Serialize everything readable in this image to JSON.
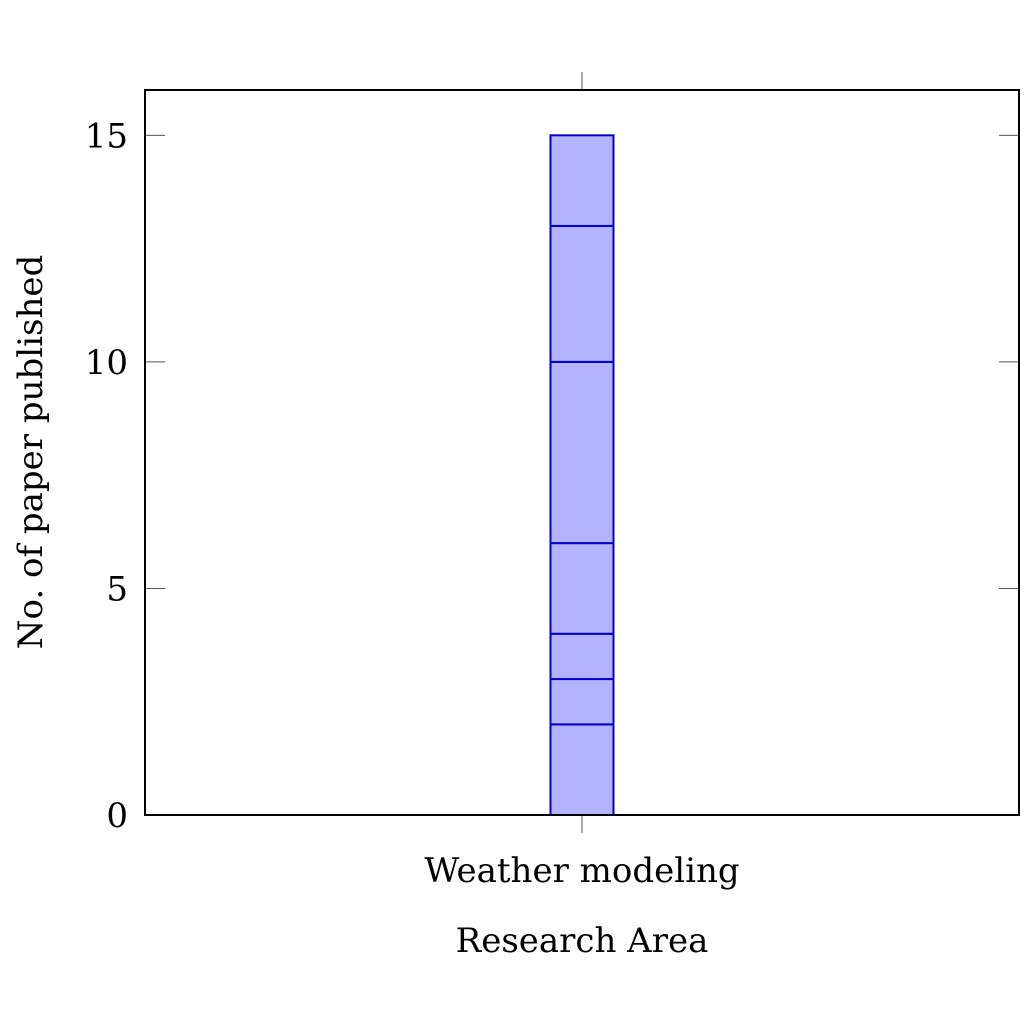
{
  "chart_data": {
    "type": "bar",
    "stacked": true,
    "categories": [
      "Weather modeling"
    ],
    "segments": [
      2,
      1,
      1,
      2,
      4,
      3,
      2
    ],
    "total": 15,
    "xlabel": "Research Area",
    "ylabel": "No. of paper published",
    "ylim": [
      0,
      16
    ],
    "yticks": [
      0,
      5,
      10,
      15
    ],
    "grid": false,
    "legend": "none"
  },
  "colors": {
    "bar_fill": "#b3b3ff",
    "bar_stroke": "#0000cc",
    "frame": "#000000",
    "tick": "#555555"
  }
}
